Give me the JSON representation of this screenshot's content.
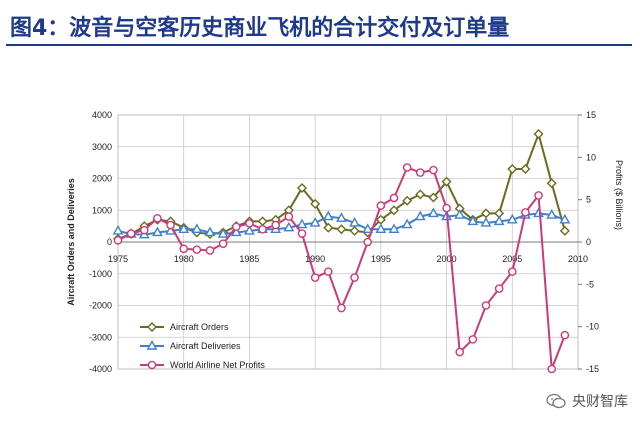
{
  "header": {
    "title": "图4：波音与空客历史商业飞机的合计交付及订单量"
  },
  "watermark": {
    "text": "央财智库",
    "icon": "wechat-icon"
  },
  "colors": {
    "title": "#1f3a8a",
    "orders": "#6b6b1e",
    "deliveries": "#3f7fd0",
    "profits": "#cc3a7a"
  },
  "chart_data": {
    "type": "line",
    "title": "",
    "ylabel": "Aircraft Orders and Deliveries",
    "y2label": "Profits ($ Billions)",
    "xlim": [
      1975,
      2010
    ],
    "ylim": [
      -4000,
      4000
    ],
    "y2lim": [
      -15,
      15
    ],
    "x_ticks": [
      "1975",
      "1980",
      "1985",
      "1990",
      "1995",
      "2000",
      "2005",
      "2010"
    ],
    "y_ticks": [
      "4000",
      "3000",
      "2000",
      "1000",
      "0",
      "-1000",
      "-2000",
      "-3000",
      "-4000"
    ],
    "y2_ticks": [
      "15",
      "10",
      "5",
      "0",
      "-5",
      "-10",
      "-15"
    ],
    "grid": true,
    "legend_position": "bottom-left",
    "series": [
      {
        "name": "Aircraft Orders",
        "axis": "left",
        "marker": "diamond",
        "x": [
          1975,
          1976,
          1977,
          1978,
          1979,
          1980,
          1981,
          1982,
          1983,
          1984,
          1985,
          1986,
          1987,
          1988,
          1989,
          1990,
          1991,
          1992,
          1993,
          1994,
          1995,
          1996,
          1997,
          1998,
          1999,
          2000,
          2001,
          2002,
          2003,
          2004,
          2005,
          2006,
          2007,
          2008,
          2009
        ],
        "values": [
          100,
          250,
          500,
          700,
          650,
          450,
          300,
          250,
          300,
          500,
          650,
          650,
          700,
          1000,
          1700,
          1200,
          450,
          400,
          350,
          300,
          700,
          1000,
          1300,
          1500,
          1400,
          1900,
          1050,
          700,
          900,
          900,
          2300,
          2300,
          3400,
          1850,
          350
        ]
      },
      {
        "name": "Aircraft Deliveries",
        "axis": "left",
        "marker": "triangle",
        "x": [
          1975,
          1976,
          1977,
          1978,
          1979,
          1980,
          1981,
          1982,
          1983,
          1984,
          1985,
          1986,
          1987,
          1988,
          1989,
          1990,
          1991,
          1992,
          1993,
          1994,
          1995,
          1996,
          1997,
          1998,
          1999,
          2000,
          2001,
          2002,
          2003,
          2004,
          2005,
          2006,
          2007,
          2008,
          2009
        ],
        "values": [
          350,
          250,
          230,
          300,
          350,
          400,
          400,
          300,
          250,
          300,
          350,
          400,
          400,
          450,
          550,
          600,
          800,
          750,
          600,
          400,
          400,
          400,
          550,
          800,
          900,
          800,
          850,
          650,
          600,
          650,
          700,
          850,
          900,
          850,
          700
        ]
      },
      {
        "name": "World Airline Net Profits",
        "axis": "right",
        "marker": "circle",
        "x": [
          1975,
          1976,
          1977,
          1978,
          1979,
          1980,
          1981,
          1982,
          1983,
          1984,
          1985,
          1986,
          1987,
          1988,
          1989,
          1990,
          1991,
          1992,
          1993,
          1994,
          1995,
          1996,
          1997,
          1998,
          1999,
          2000,
          2001,
          2002,
          2003,
          2004,
          2005,
          2006,
          2007,
          2008,
          2009
        ],
        "values": [
          0.2,
          1.0,
          1.4,
          2.8,
          2.0,
          -0.8,
          -0.9,
          -1.0,
          -0.2,
          1.8,
          2.2,
          1.5,
          2.0,
          3.0,
          1.0,
          -4.2,
          -3.5,
          -7.8,
          -4.2,
          0,
          4.3,
          5.2,
          8.8,
          8.2,
          8.5,
          4.0,
          -13,
          -11.5,
          -7.5,
          -5.5,
          -3.5,
          3.5,
          5.5,
          -15,
          -11
        ]
      }
    ]
  }
}
